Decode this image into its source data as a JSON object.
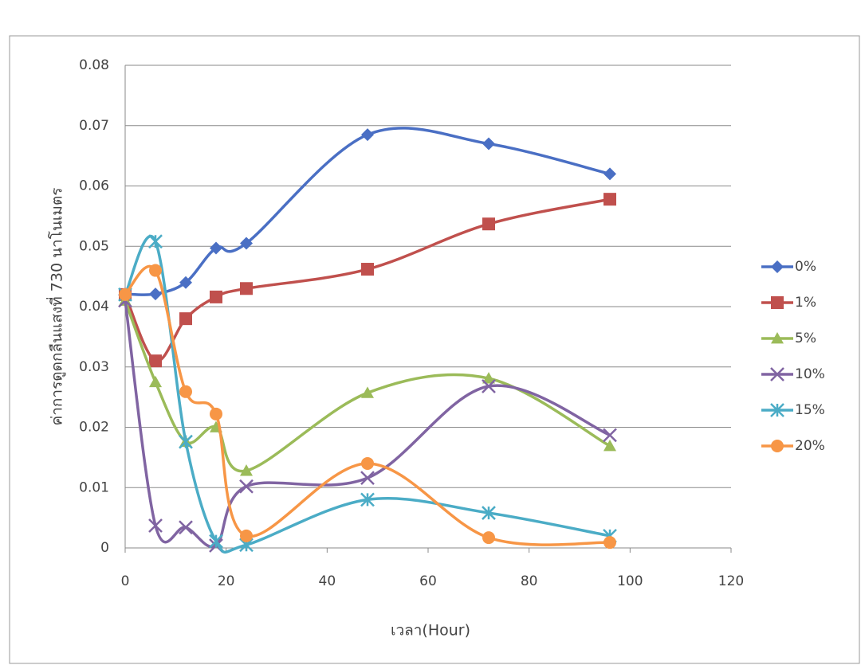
{
  "chart_data": {
    "type": "line",
    "x_label": "เวลา(Hour)",
    "y_label": "ค่าการดูดกลืนแสงที่ 730 นาโนเมตร",
    "x": [
      0,
      6,
      12,
      18,
      24,
      48,
      72,
      96
    ],
    "series": [
      {
        "name": "0%",
        "color": "#4a6fc4",
        "marker": "diamond",
        "values": [
          0.0421,
          0.0421,
          0.044,
          0.0497,
          0.0505,
          0.0685,
          0.067,
          0.062
        ]
      },
      {
        "name": "1%",
        "color": "#c0504d",
        "marker": "square",
        "values": [
          0.042,
          0.031,
          0.038,
          0.0416,
          0.043,
          0.0462,
          0.0537,
          0.0578
        ]
      },
      {
        "name": "5%",
        "color": "#9bbb59",
        "marker": "triangle",
        "values": [
          0.041,
          0.0275,
          0.0176,
          0.02,
          0.0128,
          0.0257,
          0.0281,
          0.0169
        ]
      },
      {
        "name": "10%",
        "color": "#8064a2",
        "marker": "x",
        "values": [
          0.041,
          0.0037,
          0.0034,
          0.0004,
          0.0102,
          0.0116,
          0.0268,
          0.0187
        ]
      },
      {
        "name": "15%",
        "color": "#4bacc6",
        "marker": "star",
        "values": [
          0.042,
          0.0508,
          0.0176,
          0.0011,
          0.0005,
          0.008,
          0.0058,
          0.002
        ]
      },
      {
        "name": "20%",
        "color": "#f79646",
        "marker": "circle",
        "values": [
          0.042,
          0.046,
          0.0259,
          0.0222,
          0.002,
          0.014,
          0.0017,
          0.0009
        ]
      }
    ],
    "xlim": [
      0,
      120
    ],
    "xticks": [
      0,
      20,
      40,
      60,
      80,
      100,
      120
    ],
    "ylim": [
      0,
      0.08
    ],
    "yticks": [
      0,
      0.01,
      0.02,
      0.03,
      0.04,
      0.05,
      0.06,
      0.07,
      0.08
    ],
    "grid": true,
    "smooth": true,
    "legend": "right"
  }
}
